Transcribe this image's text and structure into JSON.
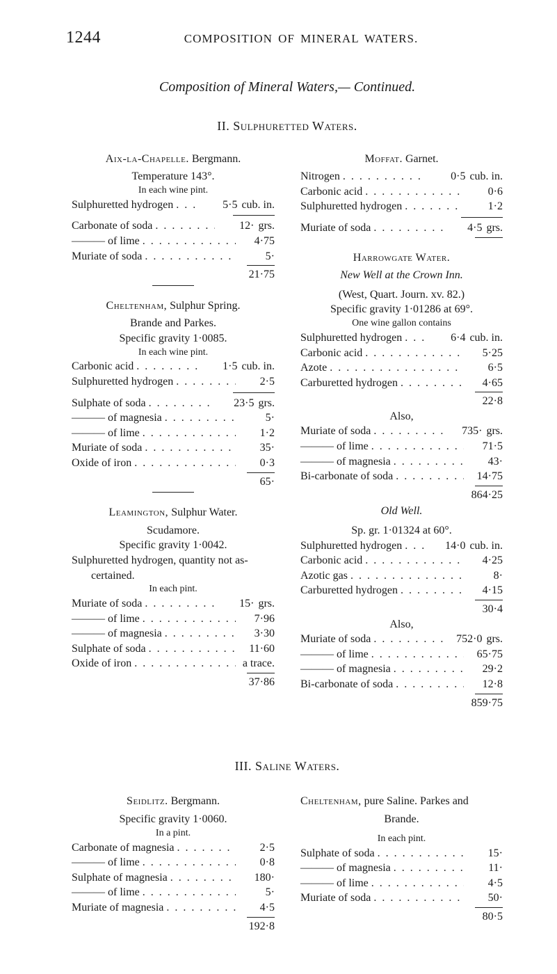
{
  "page": {
    "number": "1244",
    "running_title": "COMPOSITION OF MINERAL WATERS.",
    "chapter_title": "Composition of Mineral Waters,— Continued.",
    "section2_title": "II. Sulphuretted Waters.",
    "section3_title": "III. Saline Waters."
  },
  "left": {
    "aix": {
      "heading_sc": "Aix-la-Chapelle.",
      "heading_rest": "Bergmann.",
      "temp": "Temperature 143°.",
      "subnote": "In each wine pint.",
      "rows": [
        {
          "label": "Sulphuretted hydrogen",
          "value": "5·5",
          "unit": "cub. in."
        }
      ],
      "rows2": [
        {
          "label": "Carbonate of soda",
          "value": "12·",
          "unit": "grs."
        },
        {
          "label": "——— of lime",
          "value": "4·75",
          "unit": ""
        },
        {
          "label": "Muriate of soda",
          "value": "5·",
          "unit": ""
        }
      ],
      "sum": "21·75"
    },
    "chelt": {
      "heading_sc": "Cheltenham,",
      "heading_rest": "Sulphur Spring.",
      "sub1": "Brande and Parkes.",
      "sub2": "Specific gravity 1·0085.",
      "sub3": "In each wine pint.",
      "rows1": [
        {
          "label": "Carbonic acid",
          "value": "1·5",
          "unit": "cub. in."
        },
        {
          "label": "Sulphuretted hydrogen",
          "value": "2·5",
          "unit": ""
        }
      ],
      "rows2": [
        {
          "label": "Sulphate of soda",
          "value": "23·5",
          "unit": "grs."
        },
        {
          "label": "——— of magnesia",
          "value": "5·",
          "unit": ""
        },
        {
          "label": "——— of lime",
          "value": "1·2",
          "unit": ""
        },
        {
          "label": "Muriate of soda",
          "value": "35·",
          "unit": ""
        },
        {
          "label": "Oxide of iron",
          "value": "0·3",
          "unit": ""
        }
      ],
      "sum": "65·"
    },
    "leam": {
      "heading_sc": "Leamington,",
      "heading_rest": "Sulphur Water.",
      "sub1": "Scudamore.",
      "sub2": "Specific gravity 1·0042.",
      "note": "Sulphuretted hydrogen, quantity not as-",
      "note2": "certained.",
      "sub3": "In each pint.",
      "rows": [
        {
          "label": "Muriate of soda",
          "value": "15·",
          "unit": "grs."
        },
        {
          "label": "——— of lime",
          "value": "7·96",
          "unit": ""
        },
        {
          "label": "——— of magnesia",
          "value": "3·30",
          "unit": ""
        },
        {
          "label": "Sulphate of soda",
          "value": "11·60",
          "unit": ""
        },
        {
          "label": "Oxide of iron",
          "value": "a trace.",
          "unit": ""
        }
      ],
      "sum": "37·86"
    },
    "seid": {
      "heading_sc": "Seidlitz.",
      "heading_rest": "Bergmann.",
      "sub1": "Specific gravity 1·0060.",
      "sub2": "In a pint.",
      "rows": [
        {
          "label": "Carbonate of magnesia",
          "value": "2·5",
          "unit": ""
        },
        {
          "label": "——— of lime",
          "value": "0·8",
          "unit": ""
        },
        {
          "label": "Sulphate of magnesia",
          "value": "180·",
          "unit": ""
        },
        {
          "label": "——— of lime",
          "value": "5·",
          "unit": ""
        },
        {
          "label": "Muriate of magnesia",
          "value": "4·5",
          "unit": ""
        }
      ],
      "sum": "192·8"
    }
  },
  "right": {
    "moffat": {
      "heading_sc": "Moffat.",
      "heading_rest": "Garnet.",
      "rows": [
        {
          "label": "Nitrogen",
          "value": "0·5",
          "unit": "cub. in."
        },
        {
          "label": "Carbonic acid",
          "value": "0·6",
          "unit": ""
        },
        {
          "label": "Sulphuretted hydrogen",
          "value": "1·2",
          "unit": ""
        }
      ],
      "rows2": [
        {
          "label": "Muriate of soda",
          "value": "4·5",
          "unit": "grs."
        }
      ]
    },
    "harrow": {
      "heading_sc": "Harrowgate Water.",
      "sub_it": "New Well at the Crown Inn.",
      "sub1": "(West, Quart. Journ. xv. 82.)",
      "sub2": "Specific gravity 1·01286 at 69°.",
      "sub3": "One wine gallon contains",
      "rows": [
        {
          "label": "Sulphuretted hydrogen",
          "value": "6·4",
          "unit": "cub. in."
        },
        {
          "label": "Carbonic acid",
          "value": "5·25",
          "unit": ""
        },
        {
          "label": "Azote",
          "value": "6·5",
          "unit": ""
        },
        {
          "label": "Carburetted hydrogen",
          "value": "4·65",
          "unit": ""
        }
      ],
      "sum1": "22·8",
      "also": "Also,",
      "rows2": [
        {
          "label": "Muriate of soda",
          "value": "735·",
          "unit": "grs."
        },
        {
          "label": "——— of lime",
          "value": "71·5",
          "unit": ""
        },
        {
          "label": "——— of magnesia",
          "value": "43·",
          "unit": ""
        },
        {
          "label": "Bi-carbonate of soda",
          "value": "14·75",
          "unit": ""
        }
      ],
      "sum2": "864·25",
      "old_well": "Old Well.",
      "ow_sub1": "Sp. gr. 1·01324 at 60°.",
      "ow_rows1": [
        {
          "label": "Sulphuretted hydrogen",
          "value": "14·0",
          "unit": "cub. in."
        },
        {
          "label": "Carbonic acid",
          "value": "4·25",
          "unit": ""
        },
        {
          "label": "Azotic gas",
          "value": "8·",
          "unit": ""
        },
        {
          "label": "Carburetted hydrogen",
          "value": "4·15",
          "unit": ""
        }
      ],
      "ow_sum1": "30·4",
      "ow_also": "Also,",
      "ow_rows2": [
        {
          "label": "Muriate of soda",
          "value": "752·0",
          "unit": "grs."
        },
        {
          "label": "——— of lime",
          "value": "65·75",
          "unit": ""
        },
        {
          "label": "——— of magnesia",
          "value": "29·2",
          "unit": ""
        },
        {
          "label": "Bi-carbonate of soda",
          "value": "12·8",
          "unit": ""
        }
      ],
      "ow_sum2": "859·75"
    },
    "chelt2": {
      "heading_sc": "Cheltenham,",
      "heading_rest": "pure Saline. Parkes and",
      "sub1": "Brande.",
      "sub2": "In each pint.",
      "rows": [
        {
          "label": "Sulphate of soda",
          "value": "15·",
          "unit": ""
        },
        {
          "label": "——— of magnesia",
          "value": "11·",
          "unit": ""
        },
        {
          "label": "——— of lime",
          "value": "4·5",
          "unit": ""
        },
        {
          "label": "Muriate of soda",
          "value": "50·",
          "unit": ""
        }
      ],
      "sum": "80·5"
    }
  }
}
